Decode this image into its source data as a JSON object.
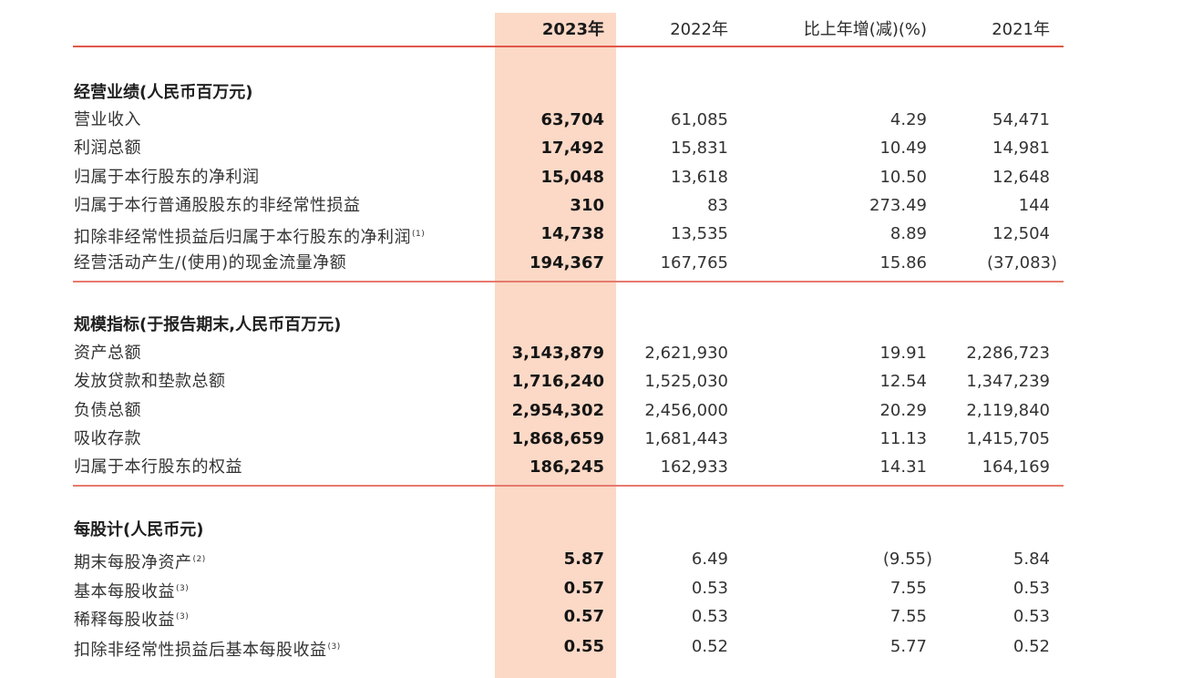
{
  "header": {
    "col_2023": "2023年",
    "col_2022": "2022年",
    "col_change": "比上年增(减)(%)",
    "col_2021": "2021年"
  },
  "sections": [
    {
      "title": "经营业绩(人民币百万元)",
      "rows": [
        {
          "label": "营业收入",
          "note": "",
          "v2023": "63,704",
          "v2022": "61,085",
          "change": "4.29",
          "v2021": "54,471"
        },
        {
          "label": "利润总额",
          "note": "",
          "v2023": "17,492",
          "v2022": "15,831",
          "change": "10.49",
          "v2021": "14,981"
        },
        {
          "label": "归属于本行股东的净利润",
          "note": "",
          "v2023": "15,048",
          "v2022": "13,618",
          "change": "10.50",
          "v2021": "12,648"
        },
        {
          "label": "归属于本行普通股股东的非经常性损益",
          "note": "",
          "v2023": "310",
          "v2022": "83",
          "change": "273.49",
          "v2021": "144"
        },
        {
          "label": "扣除非经常性损益后归属于本行股东的净利润",
          "note": "(1)",
          "v2023": "14,738",
          "v2022": "13,535",
          "change": "8.89",
          "v2021": "12,504"
        },
        {
          "label": "经营活动产生/(使用)的现金流量净额",
          "note": "",
          "v2023": "194,367",
          "v2022": "167,765",
          "change": "15.86",
          "v2021": "(37,083)"
        }
      ]
    },
    {
      "title": "规模指标(于报告期末,人民币百万元)",
      "rows": [
        {
          "label": "资产总额",
          "note": "",
          "v2023": "3,143,879",
          "v2022": "2,621,930",
          "change": "19.91",
          "v2021": "2,286,723"
        },
        {
          "label": "发放贷款和垫款总额",
          "note": "",
          "v2023": "1,716,240",
          "v2022": "1,525,030",
          "change": "12.54",
          "v2021": "1,347,239"
        },
        {
          "label": "负债总额",
          "note": "",
          "v2023": "2,954,302",
          "v2022": "2,456,000",
          "change": "20.29",
          "v2021": "2,119,840"
        },
        {
          "label": "吸收存款",
          "note": "",
          "v2023": "1,868,659",
          "v2022": "1,681,443",
          "change": "11.13",
          "v2021": "1,415,705"
        },
        {
          "label": "归属于本行股东的权益",
          "note": "",
          "v2023": "186,245",
          "v2022": "162,933",
          "change": "14.31",
          "v2021": "164,169"
        }
      ]
    },
    {
      "title": "每股计(人民币元)",
      "rows": [
        {
          "label": "期末每股净资产",
          "note": "(2)",
          "v2023": "5.87",
          "v2022": "6.49",
          "change": "(9.55)",
          "v2021": "5.84"
        },
        {
          "label": "基本每股收益",
          "note": "(3)",
          "v2023": "0.57",
          "v2022": "0.53",
          "change": "7.55",
          "v2021": "0.53"
        },
        {
          "label": "稀释每股收益",
          "note": "(3)",
          "v2023": "0.57",
          "v2022": "0.53",
          "change": "7.55",
          "v2021": "0.53"
        },
        {
          "label": "扣除非经常性损益后基本每股收益",
          "note": "(3)",
          "v2023": "0.55",
          "v2022": "0.52",
          "change": "5.77",
          "v2021": "0.52"
        }
      ]
    }
  ],
  "colors": {
    "highlight_column": "#fbd9c6",
    "rule_red": "#e0574a"
  }
}
